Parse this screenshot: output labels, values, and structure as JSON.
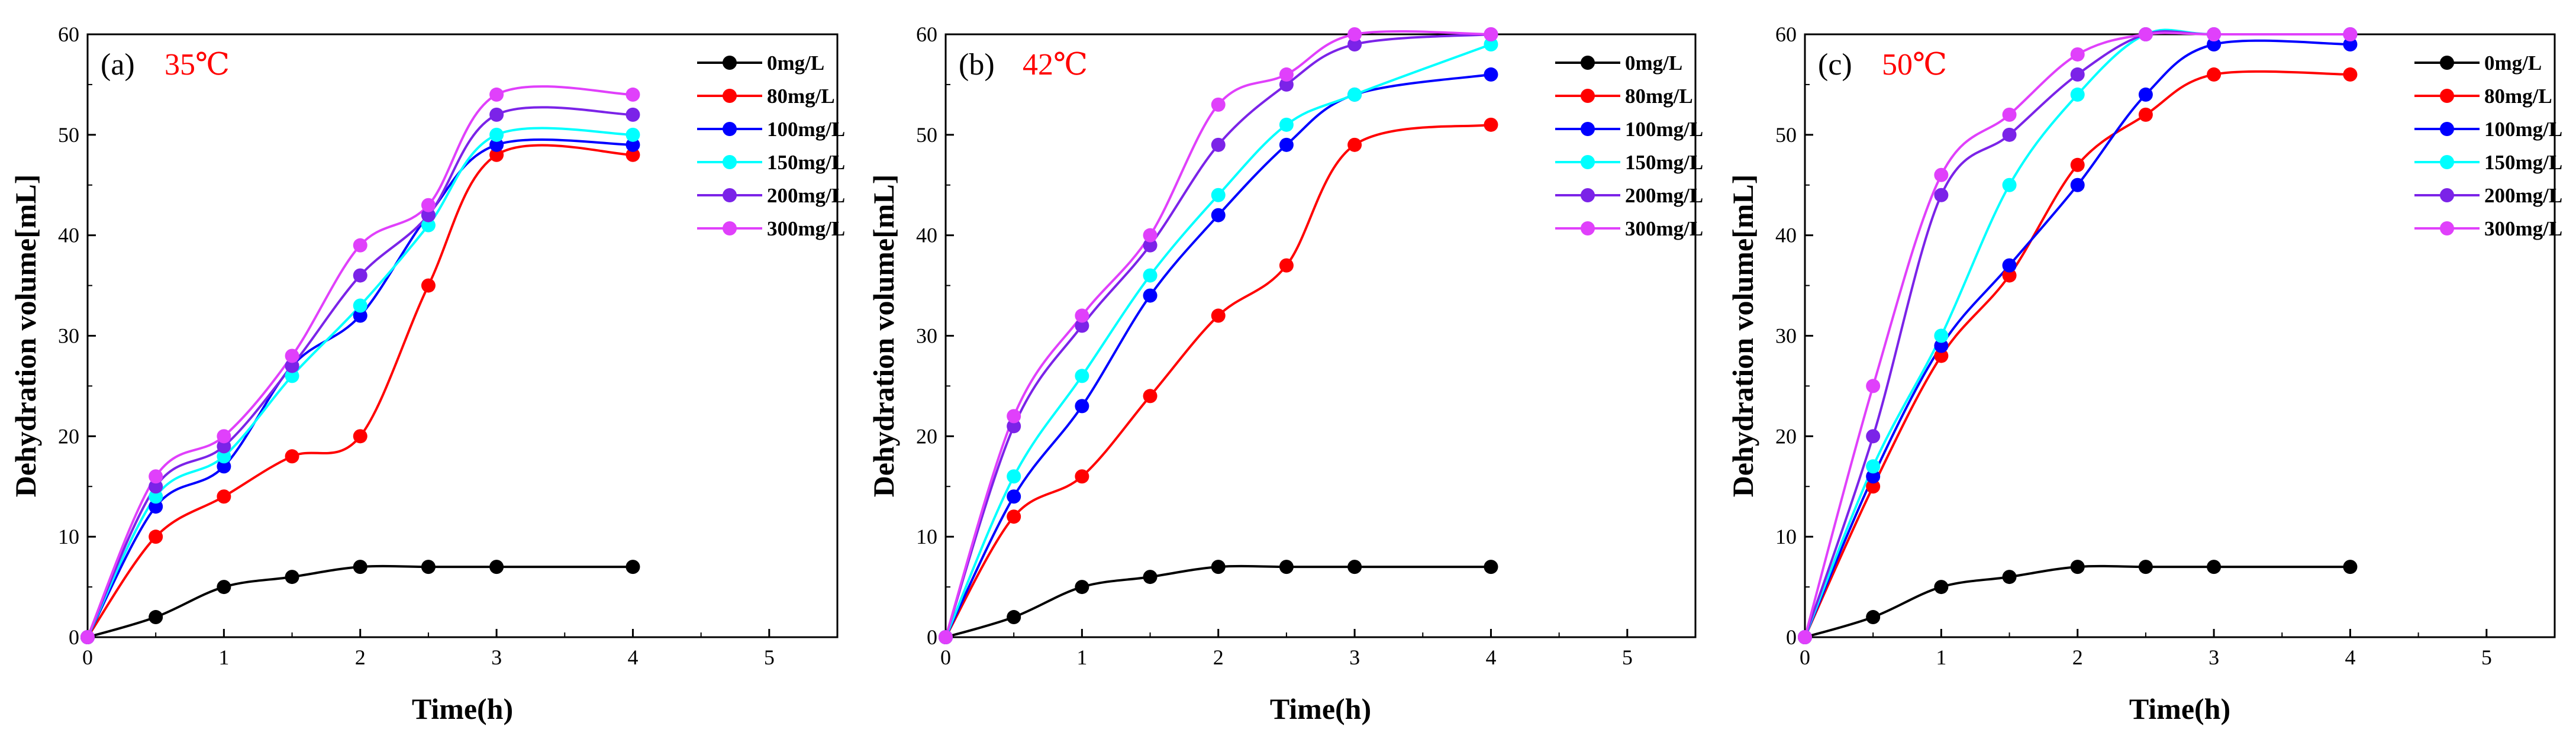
{
  "chart_data": [
    {
      "type": "line",
      "panel_letter": "(a)",
      "title": "35℃",
      "xlabel": "Time(h)",
      "ylabel": "Dehydration volume[mL]",
      "xlim": [
        0,
        5.5
      ],
      "ylim": [
        0,
        60
      ],
      "xticks": [
        0,
        1,
        2,
        3,
        4,
        5
      ],
      "yticks": [
        0,
        10,
        20,
        30,
        40,
        50,
        60
      ],
      "x": [
        0,
        0.5,
        1,
        1.5,
        2,
        2.5,
        3,
        4
      ],
      "legend_position": "top-right",
      "series": [
        {
          "name": "0mg/L",
          "color": "#000000",
          "values": [
            0,
            2,
            5,
            6,
            7,
            7,
            7,
            7
          ]
        },
        {
          "name": "80mg/L",
          "color": "#ff0000",
          "values": [
            0,
            10,
            14,
            18,
            20,
            35,
            48,
            48
          ]
        },
        {
          "name": "100mg/L",
          "color": "#0000ff",
          "values": [
            0,
            13,
            17,
            27,
            32,
            42,
            49,
            49
          ]
        },
        {
          "name": "150mg/L",
          "color": "#00ffff",
          "values": [
            0,
            14,
            18,
            26,
            33,
            41,
            50,
            50
          ]
        },
        {
          "name": "200mg/L",
          "color": "#7b23e8",
          "values": [
            0,
            15,
            19,
            27,
            36,
            42,
            52,
            52
          ]
        },
        {
          "name": "300mg/L",
          "color": "#e040fb",
          "values": [
            0,
            16,
            20,
            28,
            39,
            43,
            54,
            54
          ]
        }
      ]
    },
    {
      "type": "line",
      "panel_letter": "(b)",
      "title": "42℃",
      "xlabel": "Time(h)",
      "ylabel": "Dehydration volume[mL]",
      "xlim": [
        0,
        5.5
      ],
      "ylim": [
        0,
        60
      ],
      "xticks": [
        0,
        1,
        2,
        3,
        4,
        5
      ],
      "yticks": [
        0,
        10,
        20,
        30,
        40,
        50,
        60
      ],
      "x": [
        0,
        0.5,
        1,
        1.5,
        2,
        2.5,
        3,
        4
      ],
      "legend_position": "top-right",
      "series": [
        {
          "name": "0mg/L",
          "color": "#000000",
          "values": [
            0,
            2,
            5,
            6,
            7,
            7,
            7,
            7
          ]
        },
        {
          "name": "80mg/L",
          "color": "#ff0000",
          "values": [
            0,
            12,
            16,
            24,
            32,
            37,
            49,
            51
          ]
        },
        {
          "name": "100mg/L",
          "color": "#0000ff",
          "values": [
            0,
            14,
            23,
            34,
            42,
            49,
            54,
            56
          ]
        },
        {
          "name": "150mg/L",
          "color": "#00ffff",
          "values": [
            0,
            16,
            26,
            36,
            44,
            51,
            54,
            59
          ]
        },
        {
          "name": "200mg/L",
          "color": "#7b23e8",
          "values": [
            0,
            21,
            31,
            39,
            49,
            55,
            59,
            60
          ]
        },
        {
          "name": "300mg/L",
          "color": "#e040fb",
          "values": [
            0,
            22,
            32,
            40,
            53,
            56,
            60,
            60
          ]
        }
      ]
    },
    {
      "type": "line",
      "panel_letter": "(c)",
      "title": "50℃",
      "xlabel": "Time(h)",
      "ylabel": "Dehydration volume[mL]",
      "xlim": [
        0,
        5.5
      ],
      "ylim": [
        0,
        60
      ],
      "xticks": [
        0,
        1,
        2,
        3,
        4,
        5
      ],
      "yticks": [
        0,
        10,
        20,
        30,
        40,
        50,
        60
      ],
      "x": [
        0,
        0.5,
        1,
        1.5,
        2,
        2.5,
        3,
        4
      ],
      "legend_position": "top-right",
      "series": [
        {
          "name": "0mg/L",
          "color": "#000000",
          "values": [
            0,
            2,
            5,
            6,
            7,
            7,
            7,
            7
          ]
        },
        {
          "name": "80mg/L",
          "color": "#ff0000",
          "values": [
            0,
            15,
            28,
            36,
            47,
            52,
            56,
            56
          ]
        },
        {
          "name": "100mg/L",
          "color": "#0000ff",
          "values": [
            0,
            16,
            29,
            37,
            45,
            54,
            59,
            59
          ]
        },
        {
          "name": "150mg/L",
          "color": "#00ffff",
          "values": [
            0,
            17,
            30,
            45,
            54,
            60,
            60,
            60
          ]
        },
        {
          "name": "200mg/L",
          "color": "#7b23e8",
          "values": [
            0,
            20,
            44,
            50,
            56,
            60,
            60,
            60
          ]
        },
        {
          "name": "300mg/L",
          "color": "#e040fb",
          "values": [
            0,
            25,
            46,
            52,
            58,
            60,
            60,
            60
          ]
        }
      ]
    }
  ],
  "colors": {
    "title_color": "#ff0000",
    "axis_color": "#000000",
    "background": "#ffffff"
  }
}
